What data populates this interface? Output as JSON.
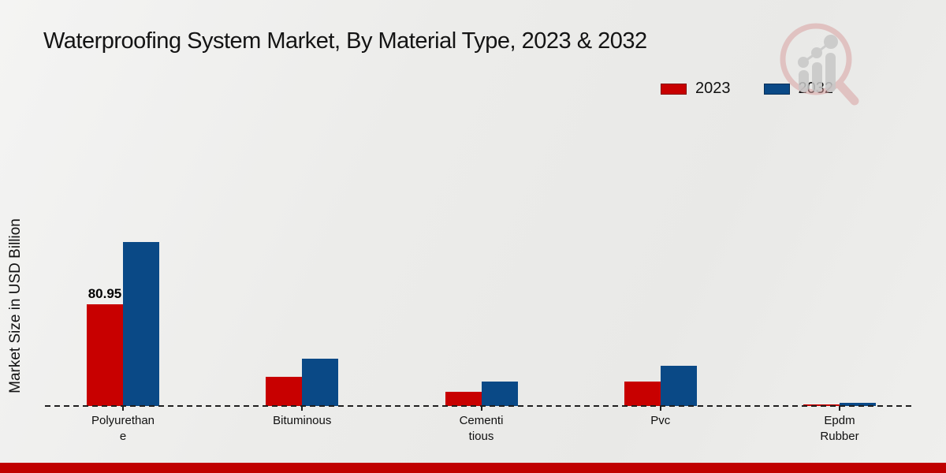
{
  "title": "Waterproofing System Market, By Material Type, 2023 & 2032",
  "y_axis_label": "Market Size in USD Billion",
  "legend": {
    "items": [
      {
        "label": "2023",
        "color": "#c80000"
      },
      {
        "label": "2032",
        "color": "#0a4986"
      }
    ]
  },
  "colors": {
    "series_2023": "#c80000",
    "series_2032": "#0a4986",
    "axis": "#1f1f1f",
    "footer_band": "#c00000",
    "background": "#ececea"
  },
  "watermark_icon": "market-research-magnifier-chart-logo",
  "chart_data": {
    "type": "bar",
    "title": "Waterproofing System Market, By Material Type, 2023 & 2032",
    "xlabel": "",
    "ylabel": "Market Size in USD Billion",
    "categories": [
      "Polyurethane",
      "Bituminous",
      "Cementitious",
      "Pvc",
      "Epdm Rubber"
    ],
    "category_label_lines": [
      [
        "Polyurethan",
        "e"
      ],
      [
        "Bituminous"
      ],
      [
        "Cementi",
        "tious"
      ],
      [
        "Pvc"
      ],
      [
        "Epdm",
        "Rubber"
      ]
    ],
    "series": [
      {
        "name": "2023",
        "color": "#c80000",
        "values": [
          80.95,
          23.2,
          11.3,
          19.5,
          1.3
        ],
        "data_labels": [
          "80.95",
          "",
          "",
          "",
          ""
        ]
      },
      {
        "name": "2032",
        "color": "#0a4986",
        "values": [
          130.5,
          37.6,
          19.5,
          32.1,
          2.5
        ],
        "data_labels": [
          "",
          "",
          "",
          "",
          ""
        ]
      }
    ],
    "ylim": [
      0,
      140
    ],
    "grid": false,
    "legend_position": "top-right",
    "baseline_style": "dashed"
  }
}
